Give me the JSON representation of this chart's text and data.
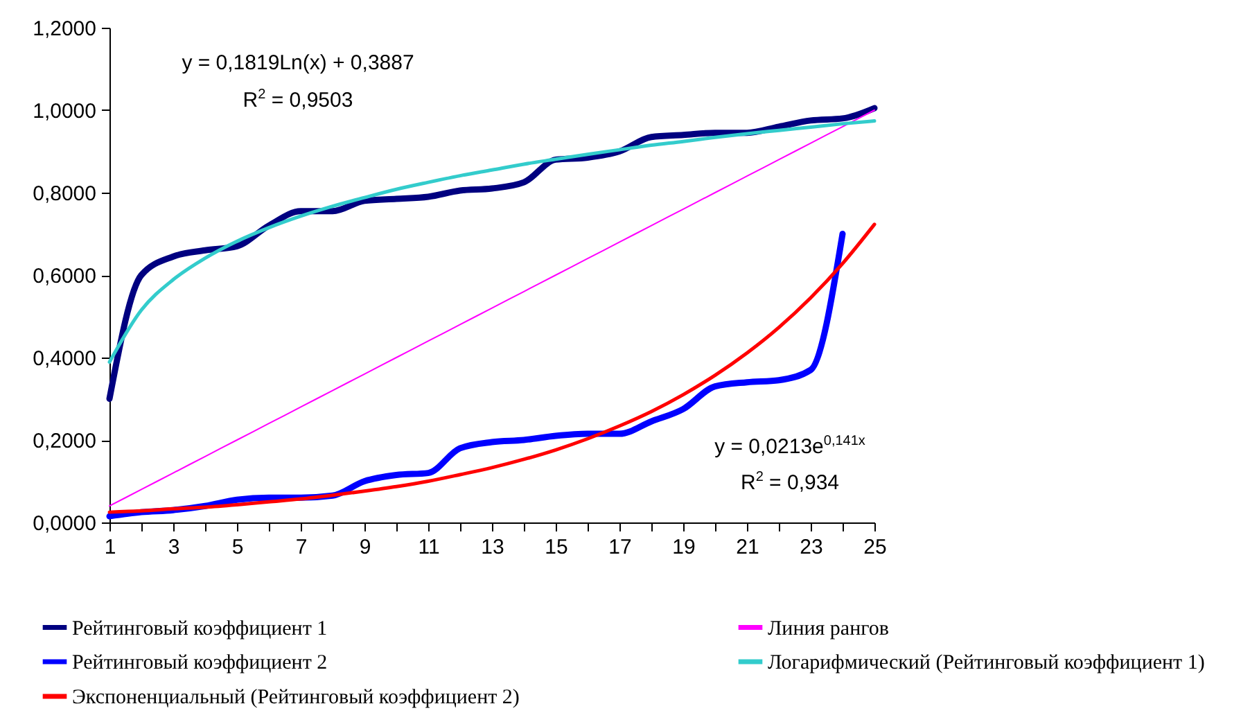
{
  "chart_data": {
    "type": "line",
    "legend": "bottom",
    "xlim": [
      1,
      25
    ],
    "xticks": [
      1,
      {
        "value": 2,
        "label": null
      },
      3,
      {
        "value": 4,
        "label": null
      },
      5,
      {
        "value": 6,
        "label": null
      },
      7,
      {
        "value": 8,
        "label": null
      },
      9,
      {
        "value": 10,
        "label": null
      },
      11,
      {
        "value": 12,
        "label": null
      },
      13,
      {
        "value": 14,
        "label": null
      },
      15,
      {
        "value": 16,
        "label": null
      },
      17,
      {
        "value": 18,
        "label": null
      },
      19,
      {
        "value": 20,
        "label": null
      },
      21,
      {
        "value": 22,
        "label": null
      },
      23,
      {
        "value": 24,
        "label": null
      },
      25
    ],
    "ylim": [
      0,
      1.2
    ],
    "yticks": [
      {
        "value": 0,
        "label": "0,0000"
      },
      {
        "value": 0.2,
        "label": "0,2000"
      },
      {
        "value": 0.4,
        "label": "0,4000"
      },
      {
        "value": 0.6,
        "label": "0,6000"
      },
      {
        "value": 0.8,
        "label": "0,8000"
      },
      {
        "value": 1,
        "label": "1,0000"
      },
      {
        "value": 1.2,
        "label": "1,2000"
      }
    ],
    "x": [
      1,
      2,
      3,
      4,
      5,
      6,
      7,
      8,
      9,
      10,
      11,
      12,
      13,
      14,
      15,
      16,
      17,
      18,
      19,
      20,
      21,
      22,
      23,
      24,
      25
    ],
    "series": [
      {
        "name": "Рейтинговый коэффициент 1",
        "color": "#000080",
        "type": "line",
        "values": [
          0.3,
          0.6,
          0.645,
          0.66,
          0.67,
          0.72,
          0.755,
          0.755,
          0.78,
          0.785,
          0.79,
          0.805,
          0.81,
          0.825,
          0.88,
          0.885,
          0.9,
          0.935,
          0.94,
          0.945,
          0.945,
          0.96,
          0.975,
          0.98,
          1.005
        ]
      },
      {
        "name": "Линия рангов",
        "color": "#ff00ff",
        "type": "line",
        "values": [
          0.04,
          0.08,
          0.12,
          0.16,
          0.2,
          0.24,
          0.28,
          0.32,
          0.36,
          0.4,
          0.44,
          0.48,
          0.52,
          0.56,
          0.6,
          0.64,
          0.68,
          0.72,
          0.76,
          0.8,
          0.84,
          0.88,
          0.92,
          0.96,
          1.0
        ]
      },
      {
        "name": "Рейтинговый коэффициент 2",
        "color": "#0000ff",
        "type": "line",
        "values": [
          0.015,
          0.025,
          0.03,
          0.04,
          0.055,
          0.06,
          0.06,
          0.065,
          0.1,
          0.115,
          0.12,
          0.18,
          0.195,
          0.2,
          0.21,
          0.215,
          0.215,
          0.245,
          0.275,
          0.33,
          0.34,
          0.345,
          0.37,
          0.7,
          null
        ]
      },
      {
        "name": "Логарифмический (Рейтинговый коэффициент 1)",
        "color": "#33cccc",
        "type": "line",
        "values": [
          0.389,
          0.515,
          0.589,
          0.641,
          0.682,
          0.715,
          0.743,
          0.767,
          0.788,
          0.808,
          0.825,
          0.841,
          0.855,
          0.869,
          0.881,
          0.893,
          0.904,
          0.915,
          0.924,
          0.934,
          0.943,
          0.951,
          0.959,
          0.967,
          0.974
        ]
      },
      {
        "name": "Экспоненциальный (Рейтинговый коэффициент 2)",
        "color": "#ff0000",
        "type": "line",
        "values": [
          0.025,
          0.028,
          0.033,
          0.037,
          0.043,
          0.05,
          0.057,
          0.066,
          0.076,
          0.087,
          0.1,
          0.116,
          0.133,
          0.153,
          0.176,
          0.203,
          0.234,
          0.269,
          0.31,
          0.357,
          0.411,
          0.473,
          0.545,
          0.628,
          0.723
        ]
      }
    ],
    "annotations": [
      "y = 0,1819Ln(x) + 0,3887",
      "R$^{2}$ = 0,9503",
      "y = 0,0213e$^{0,141x}$",
      "R$^{2}$ = 0,934"
    ]
  }
}
